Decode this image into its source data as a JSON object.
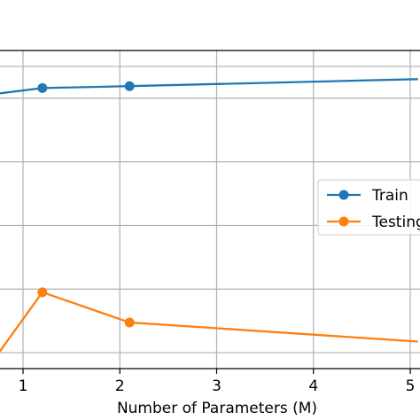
{
  "chart_data": {
    "type": "line",
    "xlabel": "Number of Parameters (M)",
    "ylabel": "",
    "xlim": [
      0.75,
      5.08
    ],
    "ylim": [
      0,
      1
    ],
    "x_ticks": [
      "1",
      "2",
      "3",
      "4",
      "5"
    ],
    "grid": true,
    "legend_position": "right",
    "series": [
      {
        "name": "Train",
        "color": "#1f77b4",
        "points": [
          {
            "x": 0.75,
            "y": 0.865,
            "marker": false
          },
          {
            "x": 1.2,
            "y": 0.882,
            "marker": true
          },
          {
            "x": 2.1,
            "y": 0.888,
            "marker": true
          },
          {
            "x": 5.08,
            "y": 0.91,
            "marker": false
          }
        ]
      },
      {
        "name": "Testing",
        "color": "#ff7f0e",
        "points": [
          {
            "x": 0.75,
            "y": 0.05,
            "marker": false
          },
          {
            "x": 1.2,
            "y": 0.24,
            "marker": true
          },
          {
            "x": 2.1,
            "y": 0.145,
            "marker": true
          },
          {
            "x": 5.08,
            "y": 0.085,
            "marker": false
          }
        ]
      }
    ]
  }
}
